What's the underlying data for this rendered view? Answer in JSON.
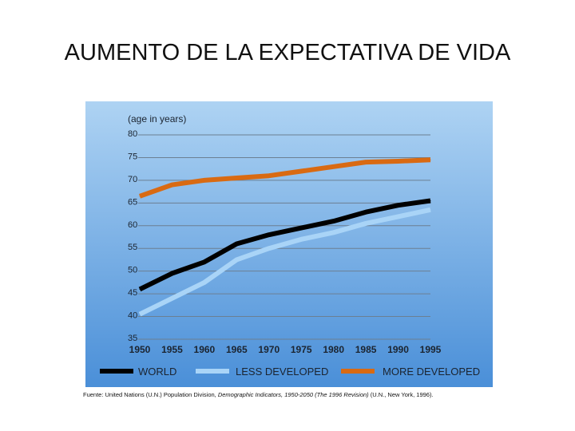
{
  "slide": {
    "title": "AUMENTO DE LA EXPECTATIVA DE VIDA"
  },
  "colors": {
    "panel_top": "#aed3f3",
    "panel_bottom": "#4a8fd8",
    "world": "#000000",
    "less_developed": "#a9d4f7",
    "more_developed": "#d96a12",
    "grid": "#6c7f92",
    "text": "#1b2430"
  },
  "chart_data": {
    "type": "line",
    "unit_label": "(age in years)",
    "x": [
      1950,
      1955,
      1960,
      1965,
      1970,
      1975,
      1980,
      1985,
      1990,
      1995
    ],
    "x_tick_labels": [
      "1950",
      "1955",
      "1960",
      "1965",
      "1970",
      "1975",
      "1980",
      "1985",
      "1990",
      "1995"
    ],
    "ylim": [
      35,
      80
    ],
    "y_ticks": [
      35,
      40,
      45,
      50,
      55,
      60,
      65,
      70,
      75,
      80
    ],
    "y_tick_labels": [
      "35",
      "40",
      "45",
      "50",
      "55",
      "60",
      "65",
      "70",
      "75",
      "80"
    ],
    "grid": true,
    "series": [
      {
        "key": "world",
        "name": "WORLD",
        "values": [
          46,
          49.5,
          52,
          56,
          58,
          59.5,
          61,
          63,
          64.5,
          65.5
        ]
      },
      {
        "key": "less_developed",
        "name": "LESS DEVELOPED",
        "values": [
          40.5,
          44,
          47.5,
          52.5,
          55,
          57,
          58.5,
          60.5,
          62,
          63.5
        ]
      },
      {
        "key": "more_developed",
        "name": "MORE DEVELOPED",
        "values": [
          66.5,
          69,
          70,
          70.5,
          71,
          72,
          73,
          74,
          74.2,
          74.5
        ]
      }
    ],
    "legend_position": "bottom"
  },
  "source": {
    "prefix": "Fuente: United Nations (U.N.) Population Division, ",
    "italic": "Demographic Indicators, 1950-2050 (The 1996 Revision)",
    "suffix": " (U.N., New York, 1996)."
  }
}
